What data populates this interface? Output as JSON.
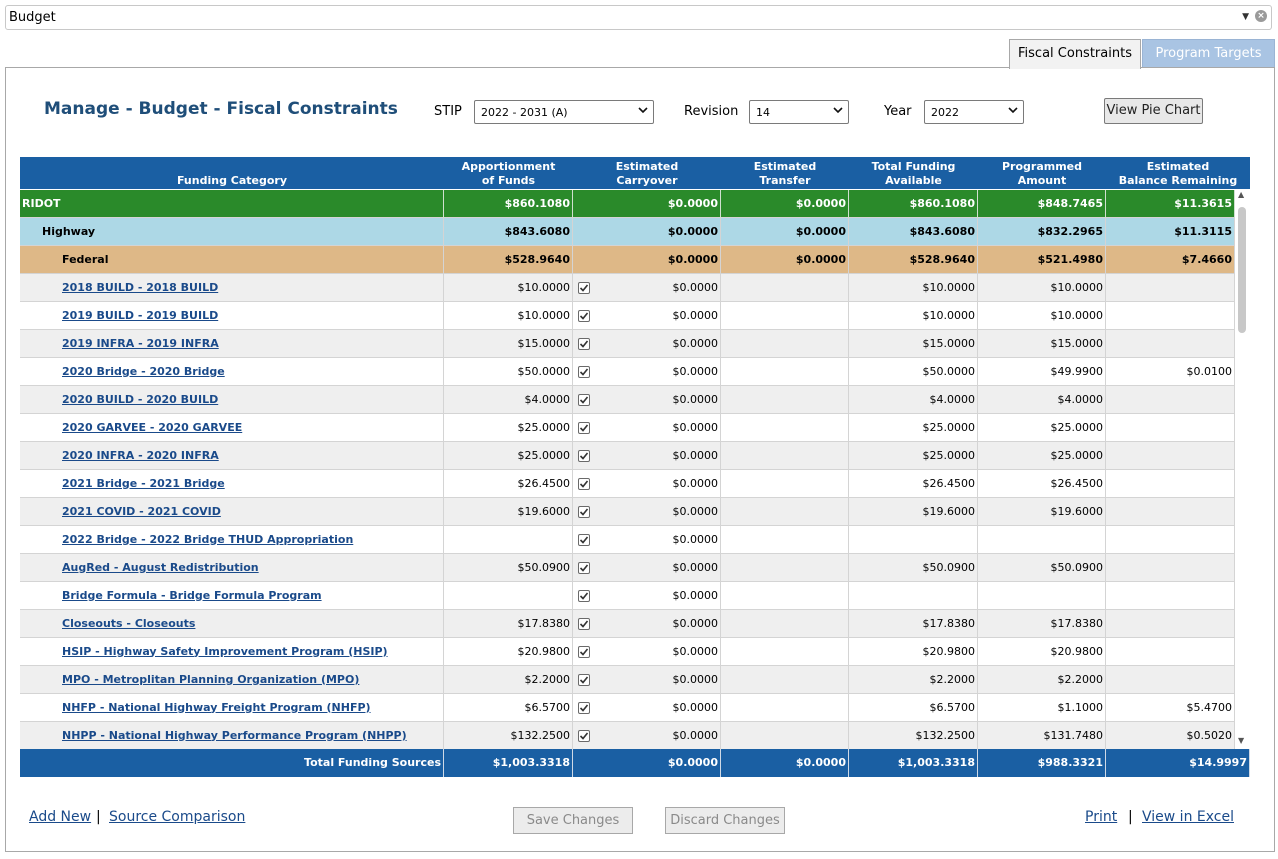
{
  "module_select": {
    "value": "Budget"
  },
  "tabs": [
    {
      "label": "Fiscal Constraints"
    },
    {
      "label": "Program Targets"
    }
  ],
  "page_title": "Manage - Budget - Fiscal Constraints",
  "filters": {
    "stip_label": "STIP",
    "stip_value": "2022 - 2031 (A)",
    "revision_label": "Revision",
    "revision_value": "14",
    "year_label": "Year",
    "year_value": "2022"
  },
  "view_pie_chart_label": "View Pie Chart",
  "columns": [
    [
      "Funding Category"
    ],
    [
      "Apportionment",
      "of Funds"
    ],
    [
      "Estimated",
      "Carryover"
    ],
    [
      "Estimated",
      "Transfer"
    ],
    [
      "Total Funding",
      "Available"
    ],
    [
      "Programmed",
      "Amount"
    ],
    [
      "Estimated",
      "Balance Remaining"
    ]
  ],
  "rows": [
    {
      "level": 0,
      "style": "green",
      "name": "RIDOT",
      "apportionment": "$860.1080",
      "carryover": "$0.0000",
      "transfer": "$0.0000",
      "total": "$860.1080",
      "programmed": "$848.7465",
      "balance": "$11.3615"
    },
    {
      "level": 1,
      "style": "blue",
      "name": "Highway",
      "apportionment": "$843.6080",
      "carryover": "$0.0000",
      "transfer": "$0.0000",
      "total": "$843.6080",
      "programmed": "$832.2965",
      "balance": "$11.3115"
    },
    {
      "level": 2,
      "style": "tan",
      "name": "Federal",
      "apportionment": "$528.9640",
      "carryover": "$0.0000",
      "transfer": "$0.0000",
      "total": "$528.9640",
      "programmed": "$521.4980",
      "balance": "$7.4660"
    },
    {
      "level": 2,
      "link": true,
      "checked": true,
      "name": "2018 BUILD - 2018 BUILD",
      "apportionment": "$10.0000",
      "carryover": "$0.0000",
      "transfer": "",
      "total": "$10.0000",
      "programmed": "$10.0000",
      "balance": ""
    },
    {
      "level": 2,
      "link": true,
      "checked": true,
      "name": "2019 BUILD - 2019 BUILD",
      "apportionment": "$10.0000",
      "carryover": "$0.0000",
      "transfer": "",
      "total": "$10.0000",
      "programmed": "$10.0000",
      "balance": ""
    },
    {
      "level": 2,
      "link": true,
      "checked": true,
      "name": "2019 INFRA - 2019 INFRA",
      "apportionment": "$15.0000",
      "carryover": "$0.0000",
      "transfer": "",
      "total": "$15.0000",
      "programmed": "$15.0000",
      "balance": ""
    },
    {
      "level": 2,
      "link": true,
      "checked": true,
      "name": "2020 Bridge - 2020 Bridge",
      "apportionment": "$50.0000",
      "carryover": "$0.0000",
      "transfer": "",
      "total": "$50.0000",
      "programmed": "$49.9900",
      "balance": "$0.0100"
    },
    {
      "level": 2,
      "link": true,
      "checked": true,
      "name": "2020 BUILD - 2020 BUILD",
      "apportionment": "$4.0000",
      "carryover": "$0.0000",
      "transfer": "",
      "total": "$4.0000",
      "programmed": "$4.0000",
      "balance": ""
    },
    {
      "level": 2,
      "link": true,
      "checked": true,
      "name": "2020 GARVEE - 2020 GARVEE",
      "apportionment": "$25.0000",
      "carryover": "$0.0000",
      "transfer": "",
      "total": "$25.0000",
      "programmed": "$25.0000",
      "balance": ""
    },
    {
      "level": 2,
      "link": true,
      "checked": true,
      "name": "2020 INFRA - 2020 INFRA",
      "apportionment": "$25.0000",
      "carryover": "$0.0000",
      "transfer": "",
      "total": "$25.0000",
      "programmed": "$25.0000",
      "balance": ""
    },
    {
      "level": 2,
      "link": true,
      "checked": true,
      "name": "2021 Bridge - 2021 Bridge",
      "apportionment": "$26.4500",
      "carryover": "$0.0000",
      "transfer": "",
      "total": "$26.4500",
      "programmed": "$26.4500",
      "balance": ""
    },
    {
      "level": 2,
      "link": true,
      "checked": true,
      "name": "2021 COVID - 2021 COVID",
      "apportionment": "$19.6000",
      "carryover": "$0.0000",
      "transfer": "",
      "total": "$19.6000",
      "programmed": "$19.6000",
      "balance": ""
    },
    {
      "level": 2,
      "link": true,
      "checked": true,
      "name": "2022 Bridge - 2022 Bridge THUD Appropriation",
      "apportionment": "",
      "carryover": "$0.0000",
      "transfer": "",
      "total": "",
      "programmed": "",
      "balance": ""
    },
    {
      "level": 2,
      "link": true,
      "checked": true,
      "name": "AugRed - August Redistribution",
      "apportionment": "$50.0900",
      "carryover": "$0.0000",
      "transfer": "",
      "total": "$50.0900",
      "programmed": "$50.0900",
      "balance": ""
    },
    {
      "level": 2,
      "link": true,
      "checked": true,
      "name": "Bridge Formula - Bridge Formula Program",
      "apportionment": "",
      "carryover": "$0.0000",
      "transfer": "",
      "total": "",
      "programmed": "",
      "balance": ""
    },
    {
      "level": 2,
      "link": true,
      "checked": true,
      "name": "Closeouts - Closeouts",
      "apportionment": "$17.8380",
      "carryover": "$0.0000",
      "transfer": "",
      "total": "$17.8380",
      "programmed": "$17.8380",
      "balance": ""
    },
    {
      "level": 2,
      "link": true,
      "checked": true,
      "name": "HSIP - Highway Safety Improvement Program (HSIP)",
      "apportionment": "$20.9800",
      "carryover": "$0.0000",
      "transfer": "",
      "total": "$20.9800",
      "programmed": "$20.9800",
      "balance": ""
    },
    {
      "level": 2,
      "link": true,
      "checked": true,
      "name": "MPO - Metroplitan Planning Organization (MPO)",
      "apportionment": "$2.2000",
      "carryover": "$0.0000",
      "transfer": "",
      "total": "$2.2000",
      "programmed": "$2.2000",
      "balance": ""
    },
    {
      "level": 2,
      "link": true,
      "checked": true,
      "name": "NHFP - National Highway Freight Program (NHFP)",
      "apportionment": "$6.5700",
      "carryover": "$0.0000",
      "transfer": "",
      "total": "$6.5700",
      "programmed": "$1.1000",
      "balance": "$5.4700"
    },
    {
      "level": 2,
      "link": true,
      "checked": true,
      "name": "NHPP - National Highway Performance Program (NHPP)",
      "apportionment": "$132.2500",
      "carryover": "$0.0000",
      "transfer": "",
      "total": "$132.2500",
      "programmed": "$131.7480",
      "balance": "$0.5020"
    }
  ],
  "totals": {
    "label": "Total Funding Sources",
    "apportionment": "$1,003.3318",
    "carryover": "$0.0000",
    "transfer": "$0.0000",
    "total": "$1,003.3318",
    "programmed": "$988.3321",
    "balance": "$14.9997"
  },
  "footer": {
    "add_new": "Add New",
    "source_comparison": "Source Comparison",
    "save_changes": "Save Changes",
    "discard_changes": "Discard Changes",
    "print": "Print",
    "view_in_excel": "View in Excel",
    "separator": "|"
  }
}
